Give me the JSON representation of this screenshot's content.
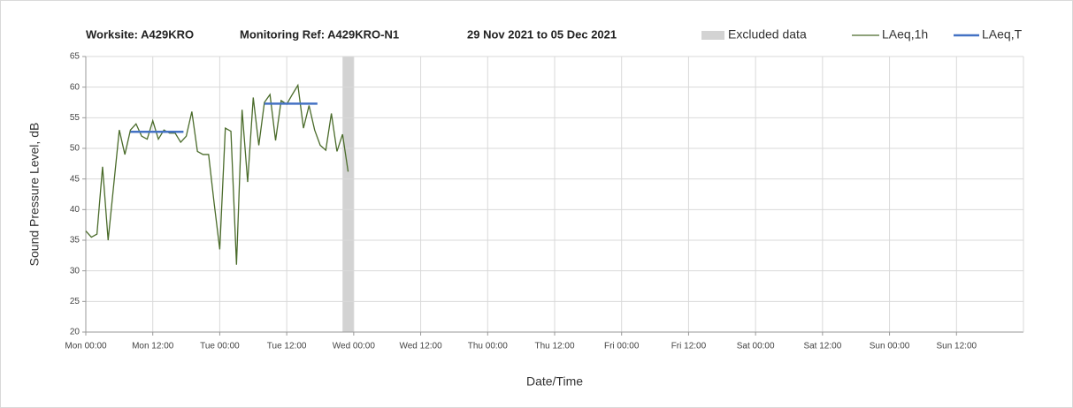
{
  "chart_data": {
    "type": "line",
    "title_parts": [
      "Worksite: A429KRO",
      "Monitoring Ref: A429KRO-N1",
      "29 Nov 2021 to 05 Dec 2021"
    ],
    "x_label": "Date/Time",
    "y_label": "Sound Pressure Level, dB",
    "xlim": [
      0,
      168
    ],
    "xticks": [
      {
        "value": 0,
        "label": "Mon 00:00"
      },
      {
        "value": 12,
        "label": "Mon 12:00"
      },
      {
        "value": 24,
        "label": "Tue 00:00"
      },
      {
        "value": 36,
        "label": "Tue 12:00"
      },
      {
        "value": 48,
        "label": "Wed 00:00"
      },
      {
        "value": 60,
        "label": "Wed 12:00"
      },
      {
        "value": 72,
        "label": "Thu 00:00"
      },
      {
        "value": 84,
        "label": "Thu 12:00"
      },
      {
        "value": 96,
        "label": "Fri 00:00"
      },
      {
        "value": 108,
        "label": "Fri 12:00"
      },
      {
        "value": 120,
        "label": "Sat 00:00"
      },
      {
        "value": 132,
        "label": "Sat 12:00"
      },
      {
        "value": 144,
        "label": "Sun 00:00"
      },
      {
        "value": 156,
        "label": "Sun 12:00"
      }
    ],
    "ylim": [
      20,
      65
    ],
    "yticks": [
      20,
      25,
      30,
      35,
      40,
      45,
      50,
      55,
      60,
      65
    ],
    "grid": true,
    "excluded": {
      "name": "Excluded data",
      "color": "#d3d3d3",
      "ranges": [
        [
          46,
          48
        ]
      ]
    },
    "series": [
      {
        "name": "LAeq,1h",
        "color": "#4a6b2a",
        "x": [
          0,
          1,
          2,
          3,
          4,
          5,
          6,
          7,
          8,
          9,
          10,
          11,
          12,
          13,
          14,
          15,
          16,
          17,
          18,
          19,
          20,
          21,
          22,
          23,
          24,
          25,
          26,
          27,
          28,
          29,
          30,
          31,
          32,
          33,
          34,
          35,
          36,
          37,
          38,
          39,
          40,
          41,
          42,
          43,
          44,
          45,
          46,
          47
        ],
        "values": [
          36.5,
          35.5,
          36,
          47,
          35,
          44,
          53,
          49,
          53,
          54,
          52,
          51.5,
          54.5,
          51.5,
          53,
          52.5,
          52.5,
          51,
          52,
          56,
          49.5,
          49,
          49,
          41,
          33.5,
          53.3,
          52.8,
          31,
          56.3,
          44.5,
          58.3,
          50.5,
          57.5,
          58.8,
          51.3,
          57.8,
          57.2,
          58.8,
          60.3,
          53.3,
          57,
          53,
          50.5,
          49.7,
          55.7,
          49.5,
          52.3,
          46.2
        ]
      }
    ],
    "segments_name": "LAeq,T",
    "segments_color": "#4472c4",
    "segments": [
      {
        "x": [
          8,
          17.5
        ],
        "value": 52.7
      },
      {
        "x": [
          32,
          41.5
        ],
        "value": 57.3
      }
    ]
  }
}
